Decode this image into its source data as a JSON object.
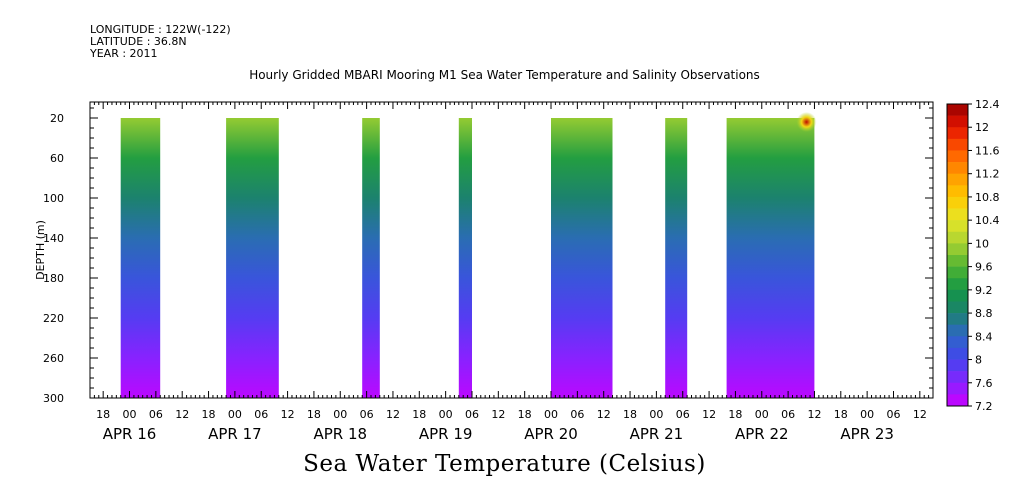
{
  "header": {
    "longitude": "LONGITUDE : 122W(-122)",
    "latitude": "LATITUDE : 36.8N",
    "year": "YEAR : 2011"
  },
  "title": "Hourly Gridded MBARI Mooring M1 Sea Water Temperature and Salinity Observations",
  "bottom_title": "Sea Water Temperature (Celsius)",
  "chart_data": {
    "type": "heatmap",
    "title": "Hourly Gridded MBARI Mooring M1 Sea Water Temperature and Salinity Observations",
    "xlabel": "",
    "ylabel": "DEPTH (m)",
    "ylim": [
      300,
      4
    ],
    "y_ticks": [
      20,
      60,
      100,
      140,
      180,
      220,
      260,
      300
    ],
    "x_axis": {
      "start": "APR 15 15:00",
      "end": "APR 23 15:00",
      "hour_tick_labels": [
        "18",
        "00",
        "06",
        "12"
      ],
      "date_labels": [
        "APR 16",
        "APR 17",
        "APR 18",
        "APR 19",
        "APR 20",
        "APR 21",
        "APR 22",
        "APR 23"
      ]
    },
    "colorbar": {
      "min": 7.2,
      "max": 12.4,
      "step": 0.2,
      "tick_labels": [
        "12.4",
        "12",
        "11.6",
        "11.2",
        "10.8",
        "10.4",
        "10",
        "9.6",
        "9.2",
        "8.8",
        "8.4",
        "8",
        "7.6",
        "7.2"
      ]
    },
    "data_segments": [
      {
        "start": "APR 15 22:00",
        "end": "APR 16 07:00"
      },
      {
        "start": "APR 16 22:00",
        "end": "APR 17 10:00"
      },
      {
        "start": "APR 18 05:00",
        "end": "APR 18 09:00"
      },
      {
        "start": "APR 19 03:00",
        "end": "APR 19 06:00"
      },
      {
        "start": "APR 20 00:00",
        "end": "APR 20 14:00"
      },
      {
        "start": "APR 21 02:00",
        "end": "APR 21 07:00"
      },
      {
        "start": "APR 21 16:00",
        "end": "APR 22 12:00"
      }
    ],
    "depth_profile": [
      {
        "depth": 20,
        "temperature": 9.9
      },
      {
        "depth": 60,
        "temperature": 9.3
      },
      {
        "depth": 100,
        "temperature": 8.8
      },
      {
        "depth": 140,
        "temperature": 8.5
      },
      {
        "depth": 180,
        "temperature": 8.2
      },
      {
        "depth": 220,
        "temperature": 7.9
      },
      {
        "depth": 260,
        "temperature": 7.6
      },
      {
        "depth": 300,
        "temperature": 7.3
      }
    ],
    "max_temperature_near_surface": 12.2,
    "grid": false
  }
}
